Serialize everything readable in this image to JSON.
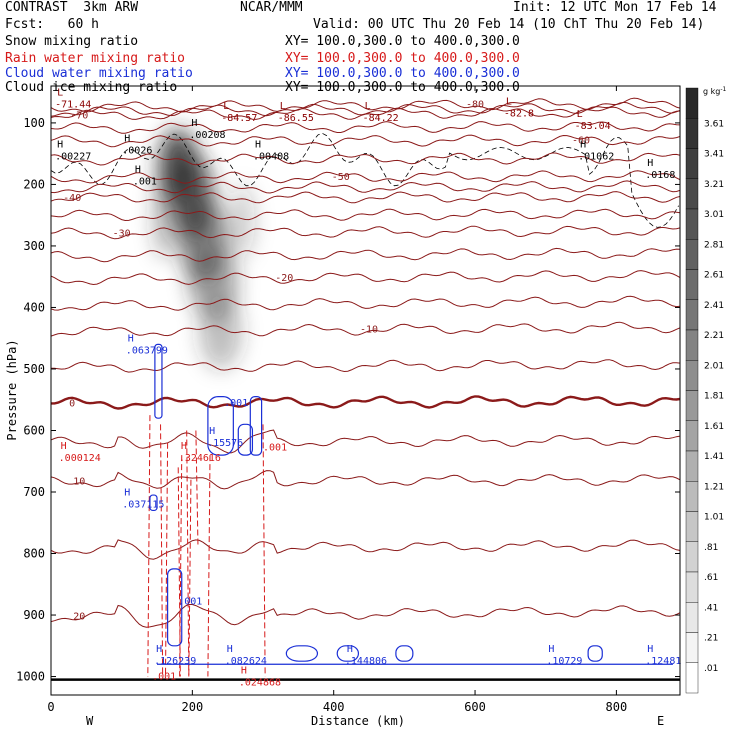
{
  "header": {
    "model": "CONTRAST  3km ARW",
    "org": "NCAR/MMM",
    "init": "Init: 12 UTC Mon 17 Feb 14",
    "fcst": "Fcst:   60 h",
    "valid": "Valid: 00 UTC Thu 20 Feb 14 (10 ChT Thu 20 Feb 14)"
  },
  "legend": [
    {
      "name": "Snow mixing ratio",
      "xy": "XY= 100.0,300.0 to 400.0,300.0",
      "color": "#000000"
    },
    {
      "name": "Rain water mixing ratio",
      "xy": "XY= 100.0,300.0 to 400.0,300.0",
      "color": "#d61a1a"
    },
    {
      "name": "Cloud water mixing ratio",
      "xy": "XY= 100.0,300.0 to 400.0,300.0",
      "color": "#1a2fd6"
    },
    {
      "name": "Cloud ice mixing ratio",
      "xy": "XY= 100.0,300.0 to 400.0,300.0",
      "color": "#000000"
    }
  ],
  "chart_data": {
    "type": "heatmap",
    "xlabel": "Distance (km)",
    "ylabel": "Pressure (hPa)",
    "x_ticks": [
      0,
      200,
      400,
      600,
      800
    ],
    "y_ticks": [
      100,
      200,
      300,
      400,
      500,
      600,
      700,
      800,
      900,
      1000
    ],
    "xlim": [
      0,
      890
    ],
    "ylim": [
      1030,
      40
    ],
    "x_ends": {
      "left": "W",
      "right": "E"
    },
    "colorbar": {
      "unit": "g kg",
      "unit_exp": "-1",
      "labels": [
        "3.61",
        "3.41",
        "3.21",
        "3.01",
        "2.81",
        "2.61",
        "2.41",
        "2.21",
        "2.01",
        "1.81",
        "1.61",
        "1.41",
        "1.21",
        "1.01",
        ".81",
        ".61",
        ".41",
        ".21",
        ".01"
      ]
    },
    "snow_plume": [
      {
        "x": 180,
        "p": 170,
        "sx": 28,
        "sp": 60,
        "w": 0.82
      },
      {
        "x": 200,
        "p": 220,
        "sx": 30,
        "sp": 70,
        "w": 0.72
      },
      {
        "x": 215,
        "p": 290,
        "sx": 34,
        "sp": 70,
        "w": 0.55
      },
      {
        "x": 230,
        "p": 360,
        "sx": 35,
        "sp": 60,
        "w": 0.4
      },
      {
        "x": 240,
        "p": 440,
        "sx": 30,
        "sp": 60,
        "w": 0.3
      },
      {
        "x": 270,
        "p": 260,
        "sx": 18,
        "sp": 60,
        "w": 0.22
      },
      {
        "x": 160,
        "p": 250,
        "sx": 15,
        "sp": 70,
        "w": 0.35
      }
    ],
    "temperature_contours": [
      {
        "value": "-80",
        "p_left": 75,
        "p_right": 68,
        "label_x": 600
      },
      {
        "value": "-70",
        "p_left": 88,
        "p_right": 82,
        "label_x": 40
      },
      {
        "value": "-60",
        "p_left": 130,
        "p_right": 128,
        "label_x": 750
      },
      {
        "value": "-50",
        "p_left": 190,
        "p_right": 186,
        "label_x": 410
      },
      {
        "value": "-40",
        "p_left": 222,
        "p_right": 220,
        "label_x": 30
      },
      {
        "value": "-30",
        "p_left": 280,
        "p_right": 275,
        "label_x": 100
      },
      {
        "value": "-20",
        "p_left": 355,
        "p_right": 348,
        "label_x": 330
      },
      {
        "value": "-10",
        "p_left": 440,
        "p_right": 432,
        "label_x": 450
      },
      {
        "value": "0",
        "p_left": 556,
        "p_right": 552,
        "label_x": 30
      },
      {
        "value": "10",
        "p_left": 683,
        "p_right": 680,
        "label_x": 40
      },
      {
        "value": "20",
        "p_left": 903,
        "p_right": 893,
        "label_x": 40
      }
    ],
    "extrema": [
      {
        "kind": "L",
        "label": "-71.44",
        "x": 20,
        "p": 70,
        "color": "#8b0000"
      },
      {
        "kind": "L",
        "label": "-84.57",
        "x": 255,
        "p": 92,
        "color": "#8b0000"
      },
      {
        "kind": "L",
        "label": "-86.55",
        "x": 335,
        "p": 92,
        "color": "#8b0000"
      },
      {
        "kind": "L",
        "label": "-84.22",
        "x": 455,
        "p": 92,
        "color": "#8b0000"
      },
      {
        "kind": "L",
        "label": "-82.8",
        "x": 655,
        "p": 85,
        "color": "#8b0000"
      },
      {
        "kind": "L",
        "label": "-83.04",
        "x": 755,
        "p": 105,
        "color": "#8b0000"
      },
      {
        "kind": "H",
        "label": ".00227",
        "x": 20,
        "p": 155,
        "color": "#000000"
      },
      {
        "kind": "H",
        "label": ".0026",
        "x": 115,
        "p": 145,
        "color": "#000000"
      },
      {
        "kind": "H",
        "label": ".00208",
        "x": 210,
        "p": 120,
        "color": "#000000"
      },
      {
        "kind": "H",
        "label": ".00408",
        "x": 300,
        "p": 155,
        "color": "#000000"
      },
      {
        "kind": "H",
        "label": ".001",
        "x": 130,
        "p": 195,
        "color": "#000000"
      },
      {
        "kind": "H",
        "label": ".01062",
        "x": 760,
        "p": 155,
        "color": "#000000"
      },
      {
        "kind": "H",
        "label": ".0168",
        "x": 855,
        "p": 185,
        "color": "#000000"
      },
      {
        "kind": "H",
        "label": ".063799",
        "x": 120,
        "p": 470,
        "color": "#1a2fd6"
      },
      {
        "kind": "H",
        "label": ".15576",
        "x": 235,
        "p": 620,
        "color": "#1a2fd6"
      },
      {
        "kind": "H",
        "label": ".037115",
        "x": 115,
        "p": 720,
        "color": "#1a2fd6"
      },
      {
        "kind": "H",
        "label": ".126239",
        "x": 160,
        "p": 975,
        "color": "#1a2fd6"
      },
      {
        "kind": "H",
        "label": ".082624",
        "x": 260,
        "p": 975,
        "color": "#1a2fd6"
      },
      {
        "kind": "H",
        "label": ".144806",
        "x": 430,
        "p": 975,
        "color": "#1a2fd6"
      },
      {
        "kind": "H",
        "label": ".10729",
        "x": 715,
        "p": 975,
        "color": "#1a2fd6"
      },
      {
        "kind": "H",
        "label": ".12481",
        "x": 855,
        "p": 975,
        "color": "#1a2fd6"
      },
      {
        "kind": "H",
        "label": ".000124",
        "x": 25,
        "p": 645,
        "color": "#d61a1a"
      },
      {
        "kind": "H",
        "label": ".324616",
        "x": 195,
        "p": 645,
        "color": "#d61a1a"
      },
      {
        "kind": "H",
        "label": ".024868",
        "x": 280,
        "p": 1010,
        "color": "#d61a1a"
      }
    ],
    "contour_labels": [
      {
        "text": ".001",
        "x": 245,
        "p": 555,
        "color": "#1a2fd6"
      },
      {
        "text": ".001",
        "x": 180,
        "p": 878,
        "color": "#1a2fd6"
      },
      {
        "text": ".001",
        "x": 300,
        "p": 628,
        "color": "#d61a1a"
      },
      {
        "text": ".001",
        "x": 143,
        "p": 1000,
        "color": "#d61a1a"
      }
    ]
  }
}
